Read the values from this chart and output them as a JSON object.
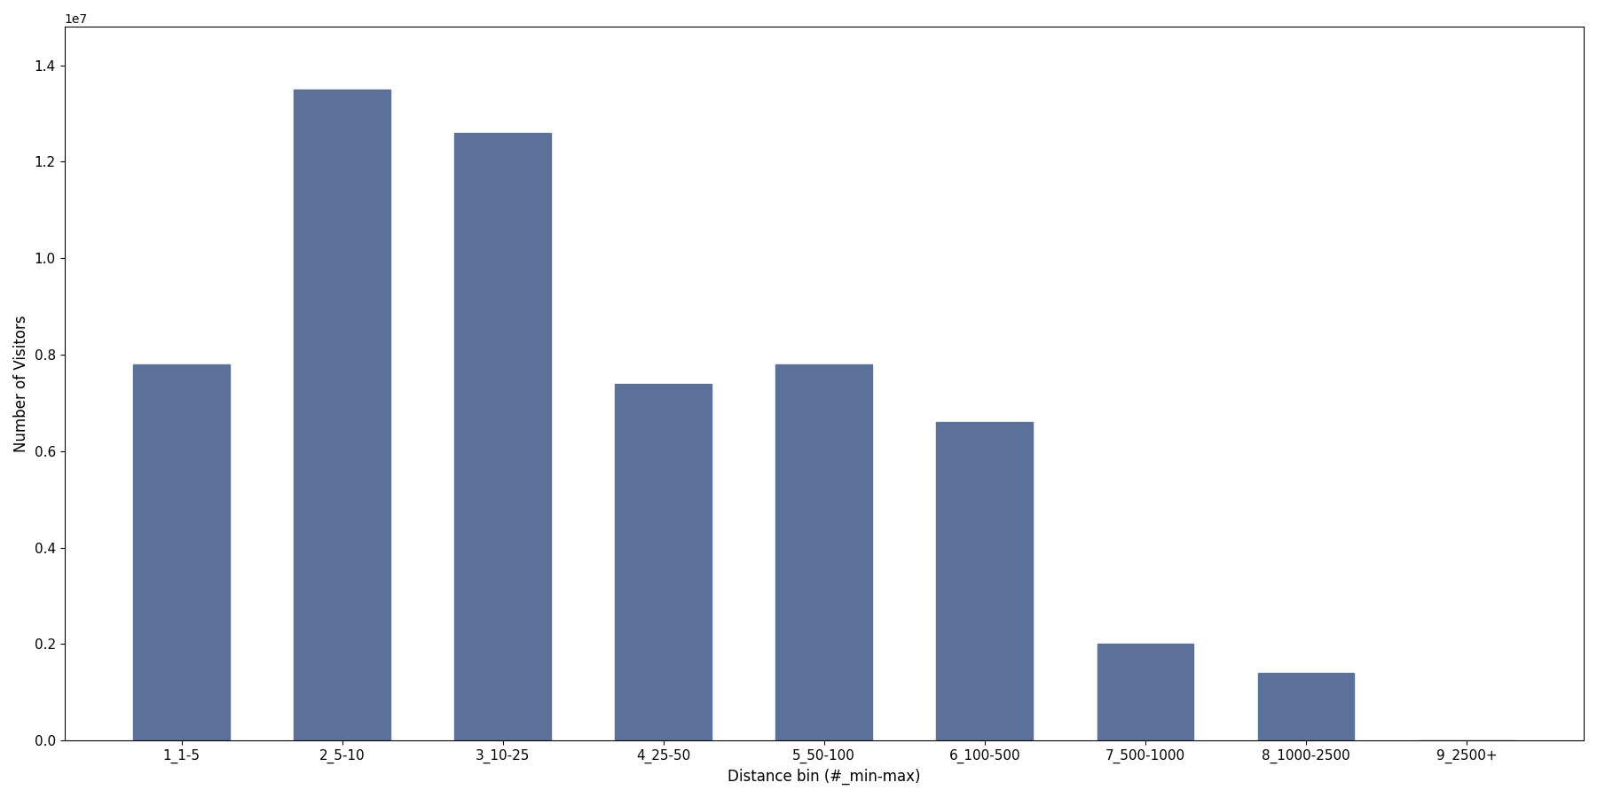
{
  "categories": [
    "1_1-5",
    "2_5-10",
    "3_10-25",
    "4_25-50",
    "5_50-100",
    "6_100-500",
    "7_500-1000",
    "8_1000-2500",
    "9_2500+"
  ],
  "values": [
    7800000,
    13500000,
    12600000,
    7400000,
    7800000,
    6600000,
    2000000,
    1400000,
    5000
  ],
  "bar_color": "#5b7199",
  "xlabel": "Distance bin (#_min-max)",
  "ylabel": "Number of Visitors",
  "ylim": [
    0,
    14800000
  ],
  "yticks": [
    0,
    2000000,
    4000000,
    6000000,
    8000000,
    10000000,
    12000000,
    14000000
  ],
  "figsize": [
    18.0,
    9.0
  ],
  "dpi": 100,
  "background_color": "#ffffff"
}
